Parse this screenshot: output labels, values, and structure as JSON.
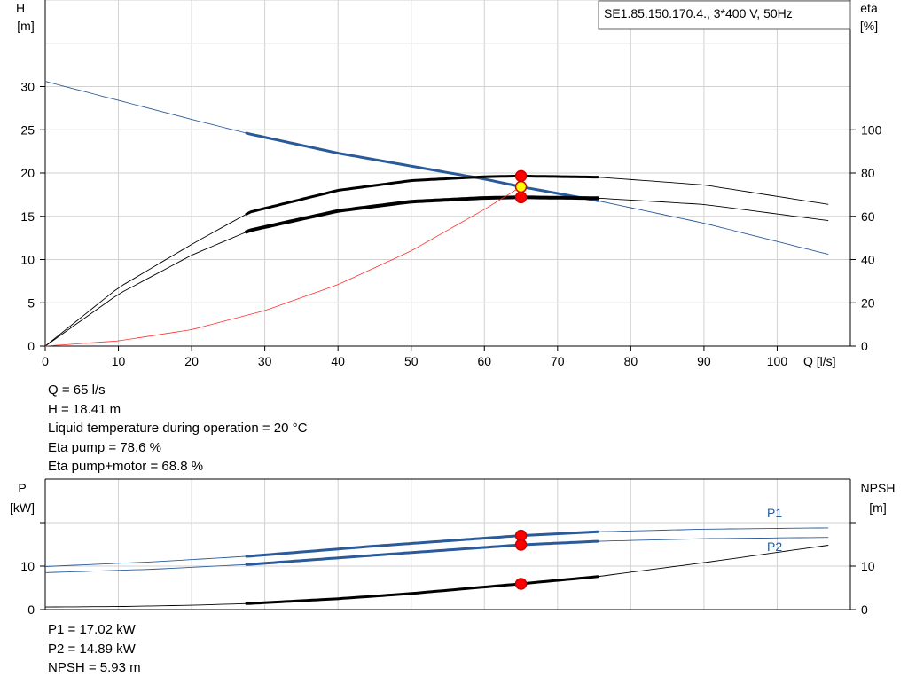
{
  "chart_data": [
    {
      "type": "line",
      "title": "SE1.85.150.170.4., 3*400 V, 50Hz",
      "xlabel": "Q [l/s]",
      "ylabel_left": [
        "H",
        "[m]"
      ],
      "ylabel_right": [
        "eta",
        "[%]"
      ],
      "xlim": [
        0,
        110
      ],
      "ylim_left": [
        0,
        40
      ],
      "ylim_right": [
        0,
        160
      ],
      "x_ticks": [
        0,
        10,
        20,
        30,
        40,
        50,
        60,
        70,
        80,
        90,
        100
      ],
      "y_ticks_left": [
        0,
        5,
        10,
        15,
        20,
        25,
        30
      ],
      "y_ticks_right": [
        0,
        20,
        40,
        60,
        80,
        100
      ],
      "grid": true,
      "series": [
        {
          "axis": "left",
          "color": "#2a5a9a",
          "x": [
            0,
            20,
            28,
            40,
            50,
            60,
            65,
            75.5,
            90,
            107
          ],
          "y": [
            30.6,
            26.2,
            24.5,
            22.3,
            20.8,
            19.3,
            18.41,
            16.8,
            14.2,
            10.6
          ],
          "op_range": [
            27.5,
            75.5
          ]
        },
        {
          "axis": "right",
          "color": "#000000",
          "x": [
            0,
            10,
            20,
            28,
            40,
            50,
            60,
            65,
            75.5,
            90,
            107
          ],
          "y": [
            0,
            27,
            47,
            62,
            72,
            76.5,
            78.3,
            78.6,
            78.1,
            74.5,
            65.5
          ],
          "op_range": [
            27.5,
            75.5
          ]
        },
        {
          "axis": "right",
          "color": "#000000",
          "x": [
            0,
            10,
            20,
            28,
            40,
            50,
            60,
            65,
            75.5,
            90,
            107
          ],
          "y": [
            0,
            24,
            42,
            53.5,
            62.5,
            66.8,
            68.5,
            68.8,
            68.4,
            65.5,
            58
          ],
          "op_range": [
            27.5,
            75.5
          ],
          "heavy": true
        },
        {
          "axis": "left",
          "color": "#ff3030",
          "x": [
            0,
            10,
            20,
            30,
            40,
            50,
            60,
            65
          ],
          "y": [
            0,
            0.6,
            1.9,
            4.1,
            7.1,
            11.0,
            15.8,
            18.41
          ]
        }
      ],
      "operating_points": [
        {
          "x": 65,
          "axis": "right",
          "y": 78.6
        },
        {
          "x": 65,
          "axis": "right",
          "y": 68.8
        },
        {
          "x": 65,
          "axis": "left",
          "y": 18.41,
          "highlight": true
        }
      ]
    },
    {
      "type": "line",
      "ylabel_left": [
        "P",
        "[kW]"
      ],
      "ylabel_right": [
        "NPSH",
        "[m]"
      ],
      "xlim": [
        0,
        110
      ],
      "ylim_left": [
        0,
        20
      ],
      "ylim_right": [
        0,
        20
      ],
      "y_ticks_left": [
        0,
        10
      ],
      "y_ticks_right": [
        0,
        10
      ],
      "grid": true,
      "series": [
        {
          "name": "P1",
          "axis": "left",
          "color": "#2a5a9a",
          "x": [
            0,
            15,
            28,
            45,
            65,
            75.5,
            90,
            107
          ],
          "y": [
            9.9,
            11.0,
            12.3,
            14.6,
            17.02,
            17.9,
            18.5,
            18.8
          ],
          "op_range": [
            27.5,
            75.5
          ]
        },
        {
          "name": "P2",
          "axis": "left",
          "color": "#2a5a9a",
          "x": [
            0,
            15,
            28,
            45,
            65,
            75.5,
            90,
            107
          ],
          "y": [
            8.5,
            9.3,
            10.4,
            12.5,
            14.89,
            15.7,
            16.3,
            16.6
          ],
          "op_range": [
            27.5,
            75.5
          ]
        },
        {
          "axis": "right",
          "color": "#000000",
          "x": [
            0,
            10,
            20,
            28,
            40,
            50,
            60,
            65,
            75.5,
            90,
            107
          ],
          "y": [
            0.6,
            0.7,
            1.0,
            1.4,
            2.5,
            3.7,
            5.2,
            5.93,
            7.6,
            10.8,
            14.8
          ],
          "op_range": [
            27.5,
            75.5
          ]
        }
      ],
      "operating_points": [
        {
          "x": 65,
          "axis": "left",
          "y": 17.02
        },
        {
          "x": 65,
          "axis": "left",
          "y": 14.89
        },
        {
          "x": 65,
          "axis": "right",
          "y": 5.93
        }
      ]
    }
  ],
  "info_top": [
    "Q = 65 l/s",
    "H = 18.41 m",
    "Liquid temperature during operation = 20 °C",
    "Eta pump = 78.6 %",
    "Eta pump+motor = 68.8 %"
  ],
  "info_bottom": [
    "P1 = 17.02 kW",
    "P2 = 14.89 kW",
    "NPSH = 5.93 m"
  ]
}
